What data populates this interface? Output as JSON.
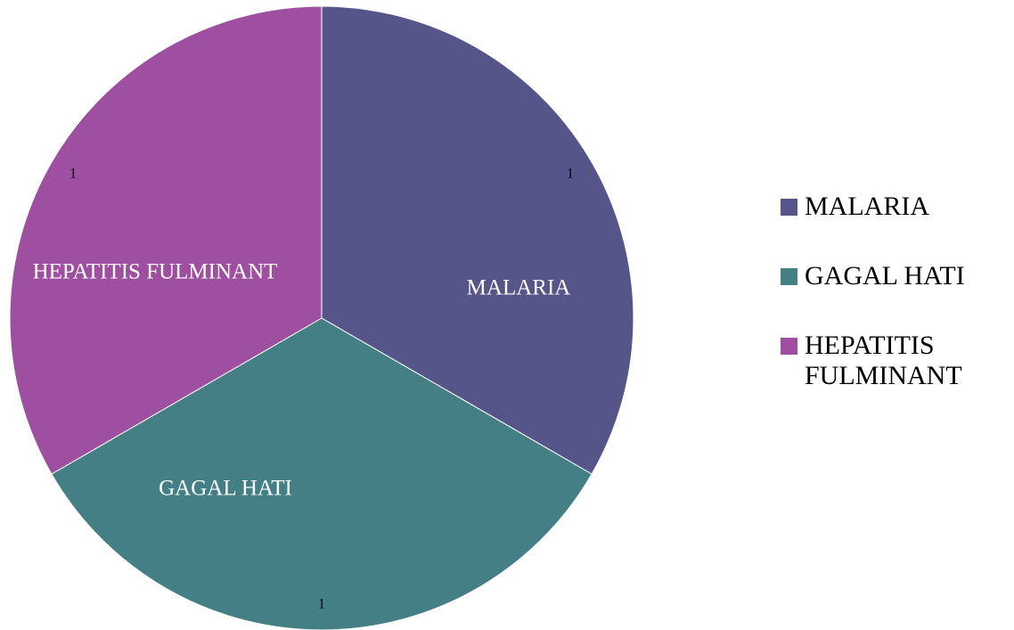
{
  "chart_data": {
    "type": "pie",
    "categories": [
      "MALARIA",
      "GAGAL HATI",
      "HEPATITIS FULMINANT"
    ],
    "values": [
      1,
      1,
      1
    ],
    "colors": [
      "#55558a",
      "#457f86",
      "#9e4fa0"
    ],
    "legend": "right"
  }
}
